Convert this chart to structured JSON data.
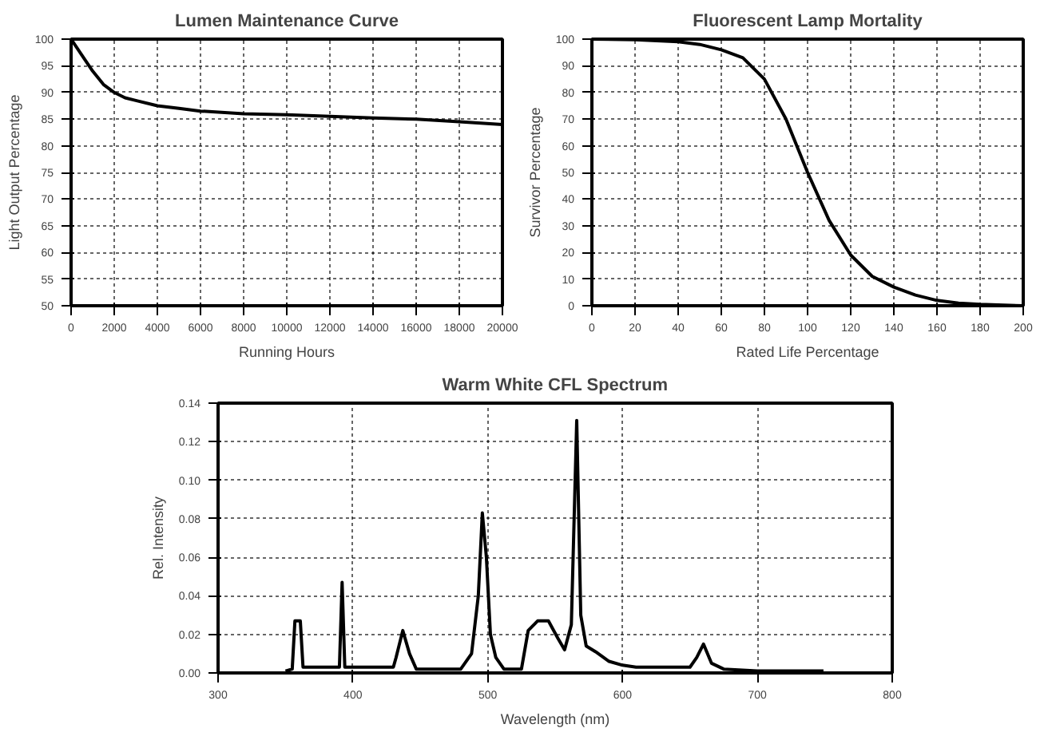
{
  "chart_data": [
    {
      "type": "line",
      "title": "Lumen Maintenance Curve",
      "xlabel": "Running Hours",
      "ylabel": "Light Output Percentage",
      "xlim": [
        0,
        20000
      ],
      "ylim": [
        50,
        100
      ],
      "xticks": [
        0,
        2000,
        4000,
        6000,
        8000,
        10000,
        12000,
        14000,
        16000,
        18000,
        20000
      ],
      "yticks": [
        50,
        55,
        60,
        65,
        70,
        75,
        80,
        85,
        90,
        95,
        100
      ],
      "grid": true,
      "marker": "none",
      "line_style": "solid",
      "series": [
        {
          "color": "#000000",
          "x": [
            0,
            500,
            1000,
            1500,
            2000,
            2500,
            3000,
            4000,
            5000,
            6000,
            8000,
            10000,
            12000,
            14000,
            16000,
            18000,
            20000
          ],
          "values": [
            100,
            97,
            94,
            91.5,
            90,
            89,
            88.5,
            87.5,
            87,
            86.5,
            86,
            85.8,
            85.5,
            85.2,
            85,
            84.5,
            84
          ]
        }
      ]
    },
    {
      "type": "line",
      "title": "Fluorescent Lamp Mortality",
      "xlabel": "Rated Life Percentage",
      "ylabel": "Survivor Percentage",
      "xlim": [
        0,
        200
      ],
      "ylim": [
        0,
        100
      ],
      "xticks": [
        0,
        20,
        40,
        60,
        80,
        100,
        120,
        140,
        160,
        180,
        200
      ],
      "yticks": [
        0,
        10,
        20,
        30,
        40,
        50,
        60,
        70,
        80,
        90,
        100
      ],
      "grid": true,
      "marker": "none",
      "line_style": "solid",
      "series": [
        {
          "color": "#000000",
          "x": [
            0,
            20,
            40,
            50,
            60,
            70,
            80,
            90,
            100,
            110,
            120,
            130,
            140,
            150,
            160,
            170,
            180,
            200
          ],
          "values": [
            100,
            99.8,
            99,
            98,
            96,
            93,
            85,
            70,
            50,
            32,
            19,
            11,
            7,
            4,
            2,
            1,
            0.5,
            0
          ]
        }
      ]
    },
    {
      "type": "line",
      "title": "Warm White CFL Spectrum",
      "xlabel": "Wavelength (nm)",
      "ylabel": "Rel. Intensity",
      "xlim": [
        300,
        800
      ],
      "ylim": [
        0,
        0.14
      ],
      "xticks": [
        300,
        400,
        500,
        600,
        700,
        800
      ],
      "yticks": [
        {
          "value": 0,
          "label": "0.00"
        },
        0.02,
        0.04,
        0.06,
        0.08,
        {
          "value": 0.1,
          "label": "0.10"
        },
        0.12,
        0.14
      ],
      "grid": true,
      "marker": "none",
      "line_style": "solid",
      "series": [
        {
          "color": "#000000",
          "x": [
            350,
            355,
            357,
            361,
            363,
            390,
            392,
            394,
            430,
            432,
            437,
            442,
            447,
            480,
            488,
            493,
            496,
            499,
            502,
            506,
            512,
            525,
            530,
            537,
            545,
            552,
            557,
            562,
            566,
            569,
            573,
            580,
            590,
            600,
            610,
            630,
            650,
            655,
            660,
            666,
            675,
            700,
            749
          ],
          "values": [
            0.001,
            0.002,
            0.027,
            0.027,
            0.003,
            0.003,
            0.047,
            0.003,
            0.003,
            0.008,
            0.022,
            0.01,
            0.002,
            0.002,
            0.01,
            0.04,
            0.083,
            0.06,
            0.02,
            0.008,
            0.002,
            0.002,
            0.022,
            0.027,
            0.027,
            0.018,
            0.012,
            0.025,
            0.131,
            0.03,
            0.014,
            0.011,
            0.006,
            0.004,
            0.003,
            0.003,
            0.003,
            0.008,
            0.015,
            0.005,
            0.002,
            0.001,
            0.001
          ]
        }
      ]
    }
  ]
}
